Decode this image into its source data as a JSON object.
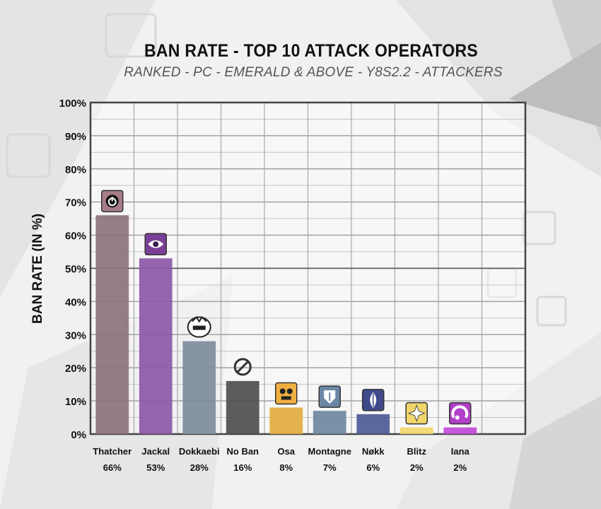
{
  "header": {
    "title": "BAN RATE - TOP 10 ATTACK OPERATORS",
    "subtitle": "RANKED - PC - EMERALD & ABOVE - Y8S2.2 - ATTACKERS"
  },
  "chart_data": {
    "type": "bar",
    "title": "BAN RATE - TOP 10 ATTACK OPERATORS",
    "subtitle": "RANKED - PC - EMERALD & ABOVE - Y8S2.2 - ATTACKERS",
    "xlabel": "",
    "ylabel": "BAN RATE (IN %)",
    "ylim": [
      0,
      100
    ],
    "yticks": [
      "0%",
      "10%",
      "20%",
      "30%",
      "40%",
      "50%",
      "60%",
      "70%",
      "80%",
      "90%",
      "100%"
    ],
    "grid": true,
    "categories": [
      "Thatcher",
      "Jackal",
      "Dokkaebi",
      "No Ban",
      "Osa",
      "Montagne",
      "Nøkk",
      "Blitz",
      "Iana"
    ],
    "values": [
      66,
      53,
      28,
      16,
      8,
      7,
      6,
      2,
      2
    ],
    "value_labels": [
      "66%",
      "53%",
      "28%",
      "16%",
      "8%",
      "7%",
      "6%",
      "2%",
      "2%"
    ],
    "colors": [
      "#8e7279",
      "#8c58a8",
      "#7e8d9c",
      "#4e4e4e",
      "#e2ab3f",
      "#6f879e",
      "#4d5a97",
      "#f2d66b",
      "#c249d7"
    ],
    "icons": [
      "thatcher-icon",
      "jackal-icon",
      "dokkaebi-icon",
      "no-ban-icon",
      "osa-icon",
      "montagne-icon",
      "nokk-icon",
      "blitz-icon",
      "iana-icon"
    ]
  }
}
